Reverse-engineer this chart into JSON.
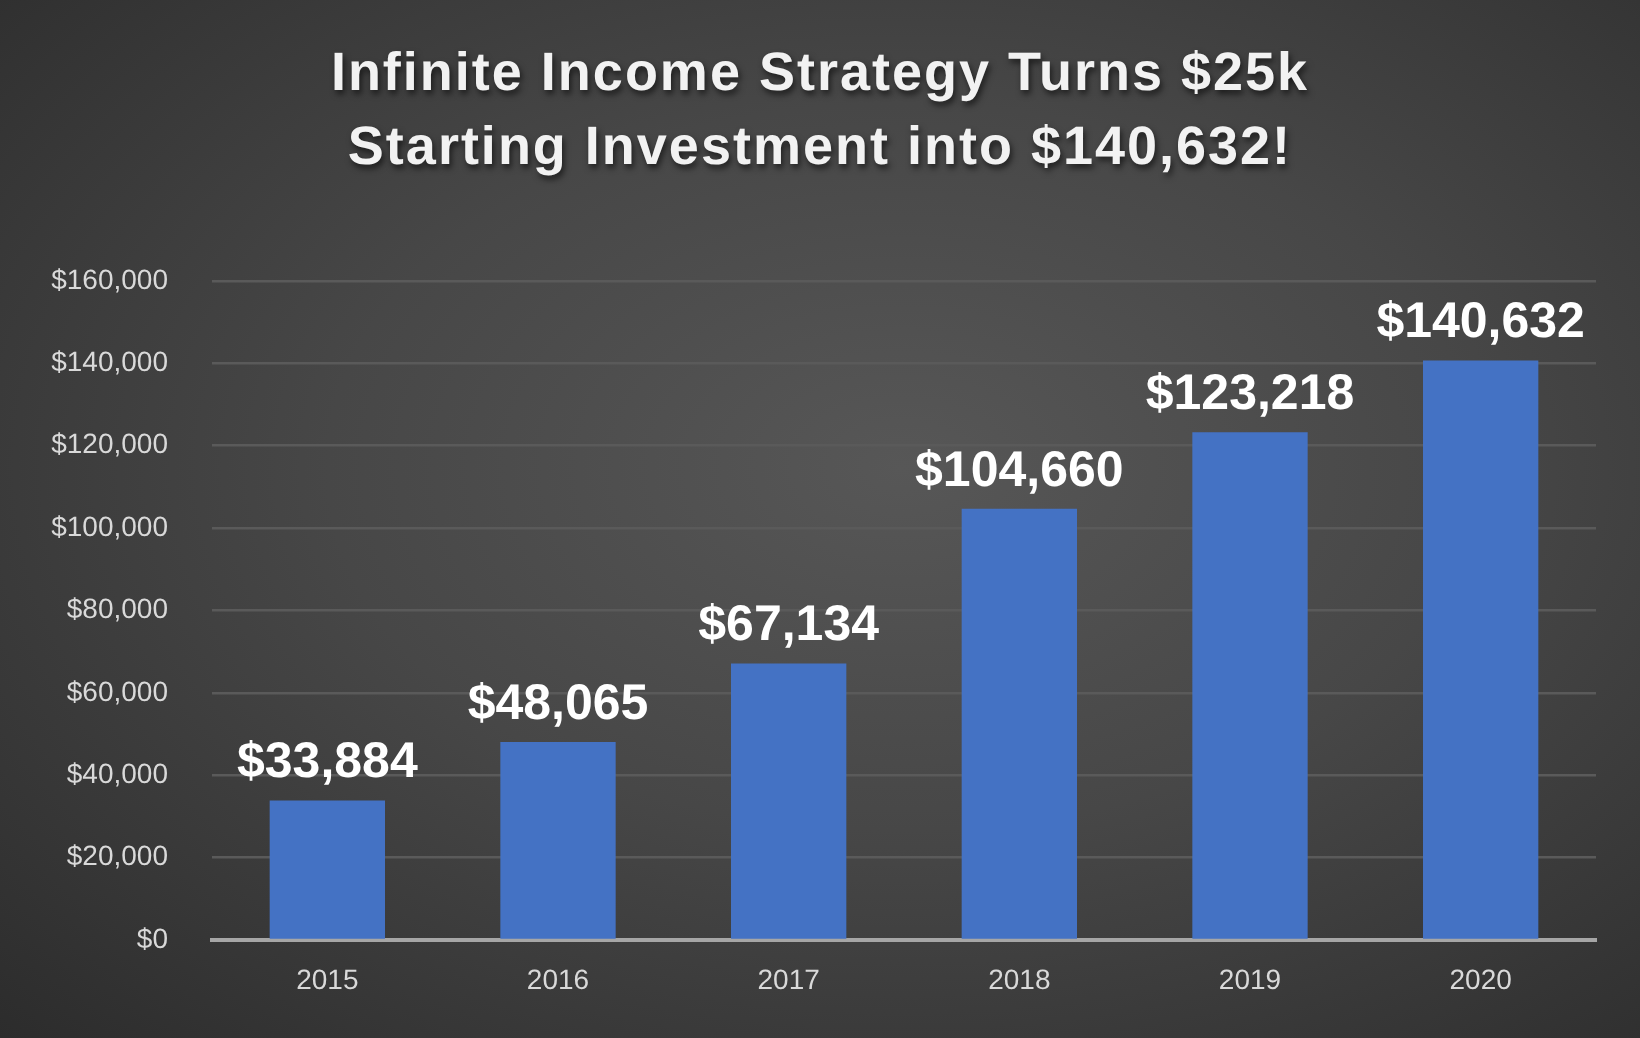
{
  "chart_data": {
    "type": "bar",
    "title": "Infinite Income Strategy Turns $25k Starting Investment into $140,632!",
    "categories": [
      "2015",
      "2016",
      "2017",
      "2018",
      "2019",
      "2020"
    ],
    "values": [
      33884,
      48065,
      67134,
      104660,
      123218,
      140632
    ],
    "value_labels": [
      "$33,884",
      "$48,065",
      "$67,134",
      "$104,660",
      "$123,218",
      "$140,632"
    ],
    "color": "#4472c4",
    "ylim": [
      0,
      160000
    ],
    "yticks": [
      {
        "value": 0,
        "label": "$0"
      },
      {
        "value": 20000,
        "label": "$20,000"
      },
      {
        "value": 40000,
        "label": "$40,000"
      },
      {
        "value": 60000,
        "label": "$60,000"
      },
      {
        "value": 80000,
        "label": "$80,000"
      },
      {
        "value": 100000,
        "label": "$100,000"
      },
      {
        "value": 120000,
        "label": "$120,000"
      },
      {
        "value": 140000,
        "label": "$140,000"
      },
      {
        "value": 160000,
        "label": "$160,000"
      }
    ],
    "grid": "y"
  }
}
